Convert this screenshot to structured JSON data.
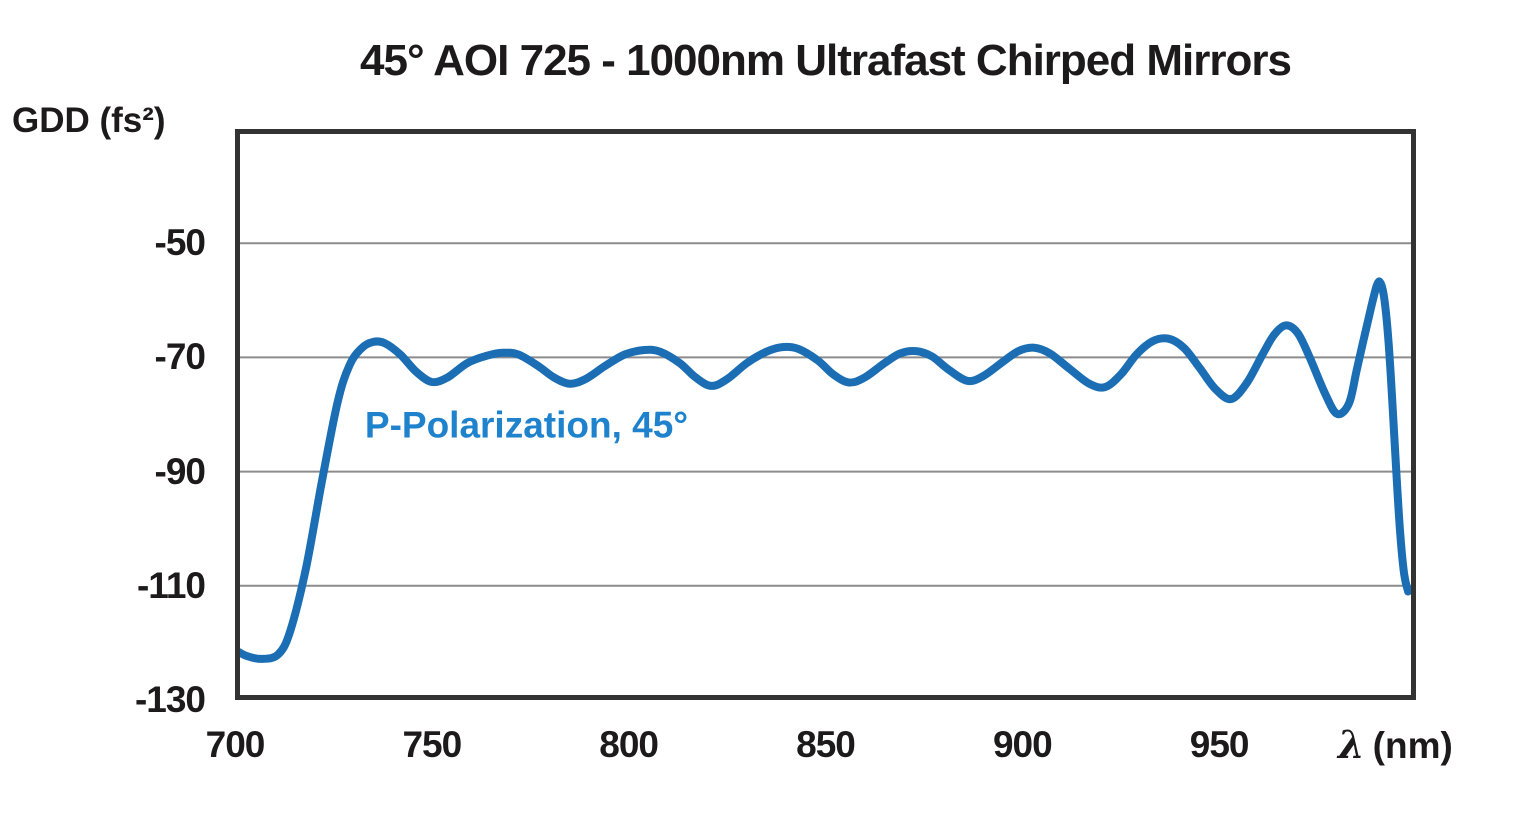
{
  "chart_data": {
    "type": "line",
    "title": "45° AOI 725 - 1000nm Ultrafast Chirped Mirrors",
    "y_axis_title": "GDD (fs²)",
    "x_axis_lambda": "λ",
    "x_axis_unit": "(nm)",
    "x_range": [
      700,
      1000
    ],
    "y_range": [
      -130,
      -30
    ],
    "x_ticks": [
      {
        "label": "700",
        "value": 700
      },
      {
        "label": "750",
        "value": 750
      },
      {
        "label": "800",
        "value": 800
      },
      {
        "label": "850",
        "value": 850
      },
      {
        "label": "900",
        "value": 900
      },
      {
        "label": "950",
        "value": 950
      }
    ],
    "y_ticks": [
      {
        "label": "-50",
        "value": -50
      },
      {
        "label": "-70",
        "value": -70
      },
      {
        "label": "-90",
        "value": -90
      },
      {
        "label": "-110",
        "value": -110
      },
      {
        "label": "-130",
        "value": -130
      }
    ],
    "gridline_values": [
      -50,
      -70,
      -90,
      -110
    ],
    "grid": "horizontal-only",
    "legend_position": "inside-annotation",
    "annotation": {
      "text": "P-Polarization, 45°",
      "x_nm": 733,
      "y_gdd": -84
    },
    "series": [
      {
        "name": "P-Polarization, 45°",
        "points": [
          [
            700,
            -121.2
          ],
          [
            703,
            -122.3
          ],
          [
            707,
            -122.8
          ],
          [
            711,
            -122.0
          ],
          [
            714,
            -118.0
          ],
          [
            718,
            -107.0
          ],
          [
            722,
            -92.0
          ],
          [
            726,
            -78.0
          ],
          [
            729,
            -71.5
          ],
          [
            732,
            -68.5
          ],
          [
            735,
            -67.3
          ],
          [
            738,
            -67.5
          ],
          [
            742,
            -69.5
          ],
          [
            746,
            -72.5
          ],
          [
            750,
            -74.3
          ],
          [
            754,
            -73.5
          ],
          [
            759,
            -71.0
          ],
          [
            764,
            -69.7
          ],
          [
            768,
            -69.2
          ],
          [
            772,
            -69.5
          ],
          [
            777,
            -71.5
          ],
          [
            781,
            -73.5
          ],
          [
            785,
            -74.6
          ],
          [
            789,
            -73.8
          ],
          [
            794,
            -71.5
          ],
          [
            799,
            -69.5
          ],
          [
            804,
            -68.7
          ],
          [
            808,
            -69.0
          ],
          [
            813,
            -71.0
          ],
          [
            817,
            -73.5
          ],
          [
            821,
            -75.0
          ],
          [
            825,
            -73.8
          ],
          [
            830,
            -71.0
          ],
          [
            835,
            -69.0
          ],
          [
            839,
            -68.2
          ],
          [
            843,
            -68.5
          ],
          [
            848,
            -70.5
          ],
          [
            852,
            -73.0
          ],
          [
            856,
            -74.4
          ],
          [
            860,
            -73.5
          ],
          [
            865,
            -71.0
          ],
          [
            869,
            -69.3
          ],
          [
            873,
            -68.9
          ],
          [
            877,
            -69.8
          ],
          [
            881,
            -72.0
          ],
          [
            886,
            -74.1
          ],
          [
            890,
            -73.3
          ],
          [
            895,
            -70.8
          ],
          [
            899,
            -68.9
          ],
          [
            903,
            -68.3
          ],
          [
            907,
            -69.3
          ],
          [
            912,
            -72.0
          ],
          [
            917,
            -74.6
          ],
          [
            921,
            -75.2
          ],
          [
            925,
            -73.0
          ],
          [
            929,
            -69.5
          ],
          [
            933,
            -67.2
          ],
          [
            937,
            -66.7
          ],
          [
            941,
            -68.3
          ],
          [
            945,
            -71.8
          ],
          [
            949,
            -75.5
          ],
          [
            953,
            -77.3
          ],
          [
            957,
            -74.5
          ],
          [
            961,
            -69.5
          ],
          [
            964,
            -66.0
          ],
          [
            967,
            -64.4
          ],
          [
            970,
            -65.8
          ],
          [
            973,
            -70.0
          ],
          [
            977,
            -76.5
          ],
          [
            980,
            -79.9
          ],
          [
            983,
            -78.0
          ],
          [
            985,
            -72.0
          ],
          [
            988,
            -63.0
          ],
          [
            990,
            -57.5
          ],
          [
            991,
            -57.0
          ],
          [
            992,
            -60.0
          ],
          [
            993,
            -67.0
          ],
          [
            994,
            -78.0
          ],
          [
            995,
            -90.0
          ],
          [
            996,
            -101.0
          ],
          [
            997,
            -108.0
          ],
          [
            998,
            -111.0
          ]
        ]
      }
    ],
    "colors": {
      "curve": "#1b6eb3",
      "annotation_text": "#1e82cd",
      "gridline": "#8c8c8c",
      "frame": "#333333",
      "text": "#1c1a1b",
      "background": "#ffffff"
    }
  }
}
